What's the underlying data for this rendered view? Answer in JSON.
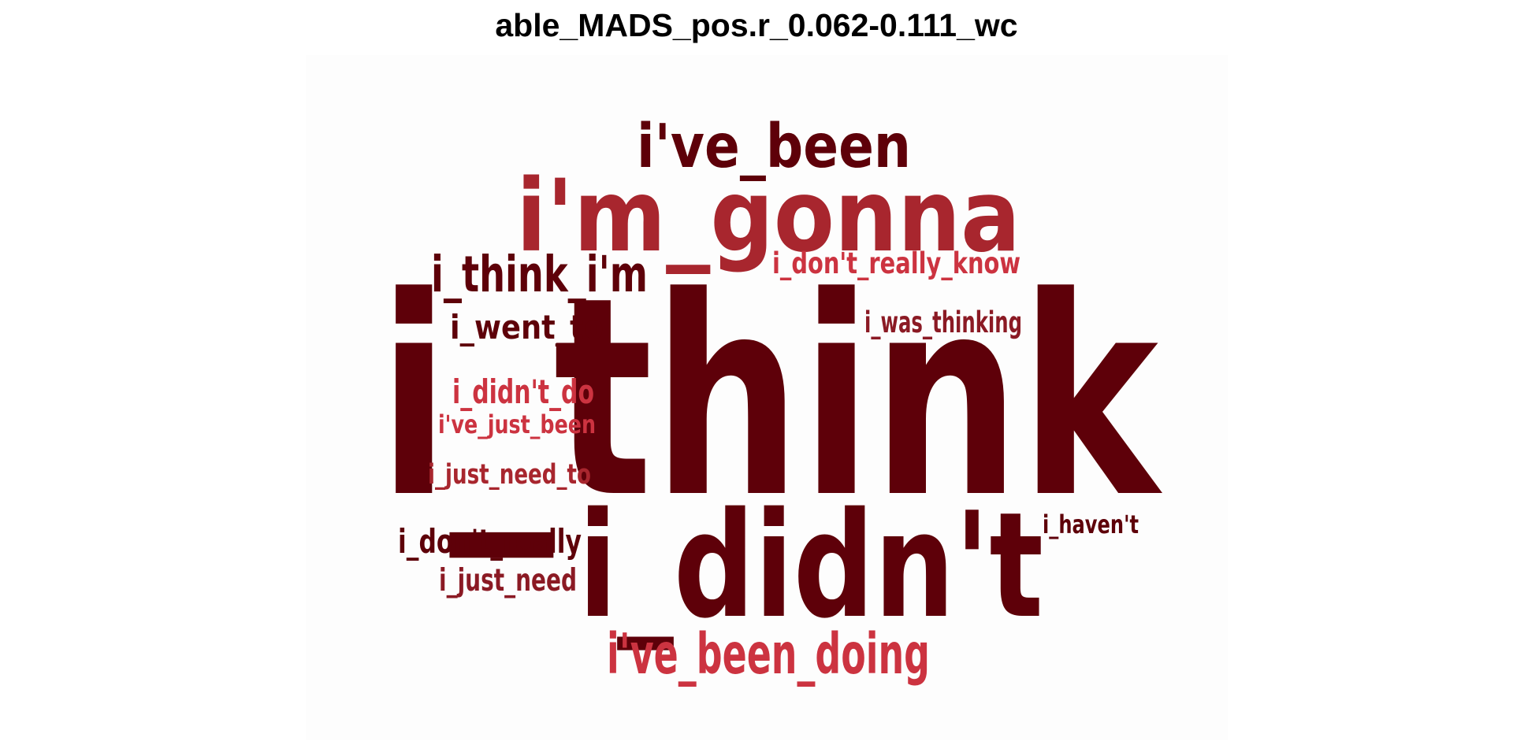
{
  "title": "able_MADS_pos.r_0.062-0.111_wc",
  "colors": {
    "dark": "#5e0009",
    "medium": "#8b1a24",
    "red": "#a8262e",
    "bright": "#cc3340",
    "background": "#ffffff"
  },
  "words": [
    {
      "text": "i_think",
      "tone": "dark"
    },
    {
      "text": "i'm_gonna",
      "tone": "red"
    },
    {
      "text": "i_didn't",
      "tone": "dark"
    },
    {
      "text": "i've_been",
      "tone": "dark"
    },
    {
      "text": "i_think_i'm",
      "tone": "dark"
    },
    {
      "text": "i've_been_doing",
      "tone": "bright"
    },
    {
      "text": "i_don't_really_know",
      "tone": "bright"
    },
    {
      "text": "i_was_thinking",
      "tone": "medium"
    },
    {
      "text": "i_went_to",
      "tone": "dark"
    },
    {
      "text": "i_didn't_do",
      "tone": "bright"
    },
    {
      "text": "i've_just_been",
      "tone": "bright"
    },
    {
      "text": "i_just_need_to",
      "tone": "red"
    },
    {
      "text": "i_don't_really",
      "tone": "dark"
    },
    {
      "text": "i_just_need",
      "tone": "medium"
    },
    {
      "text": "i_haven't",
      "tone": "dark"
    }
  ]
}
